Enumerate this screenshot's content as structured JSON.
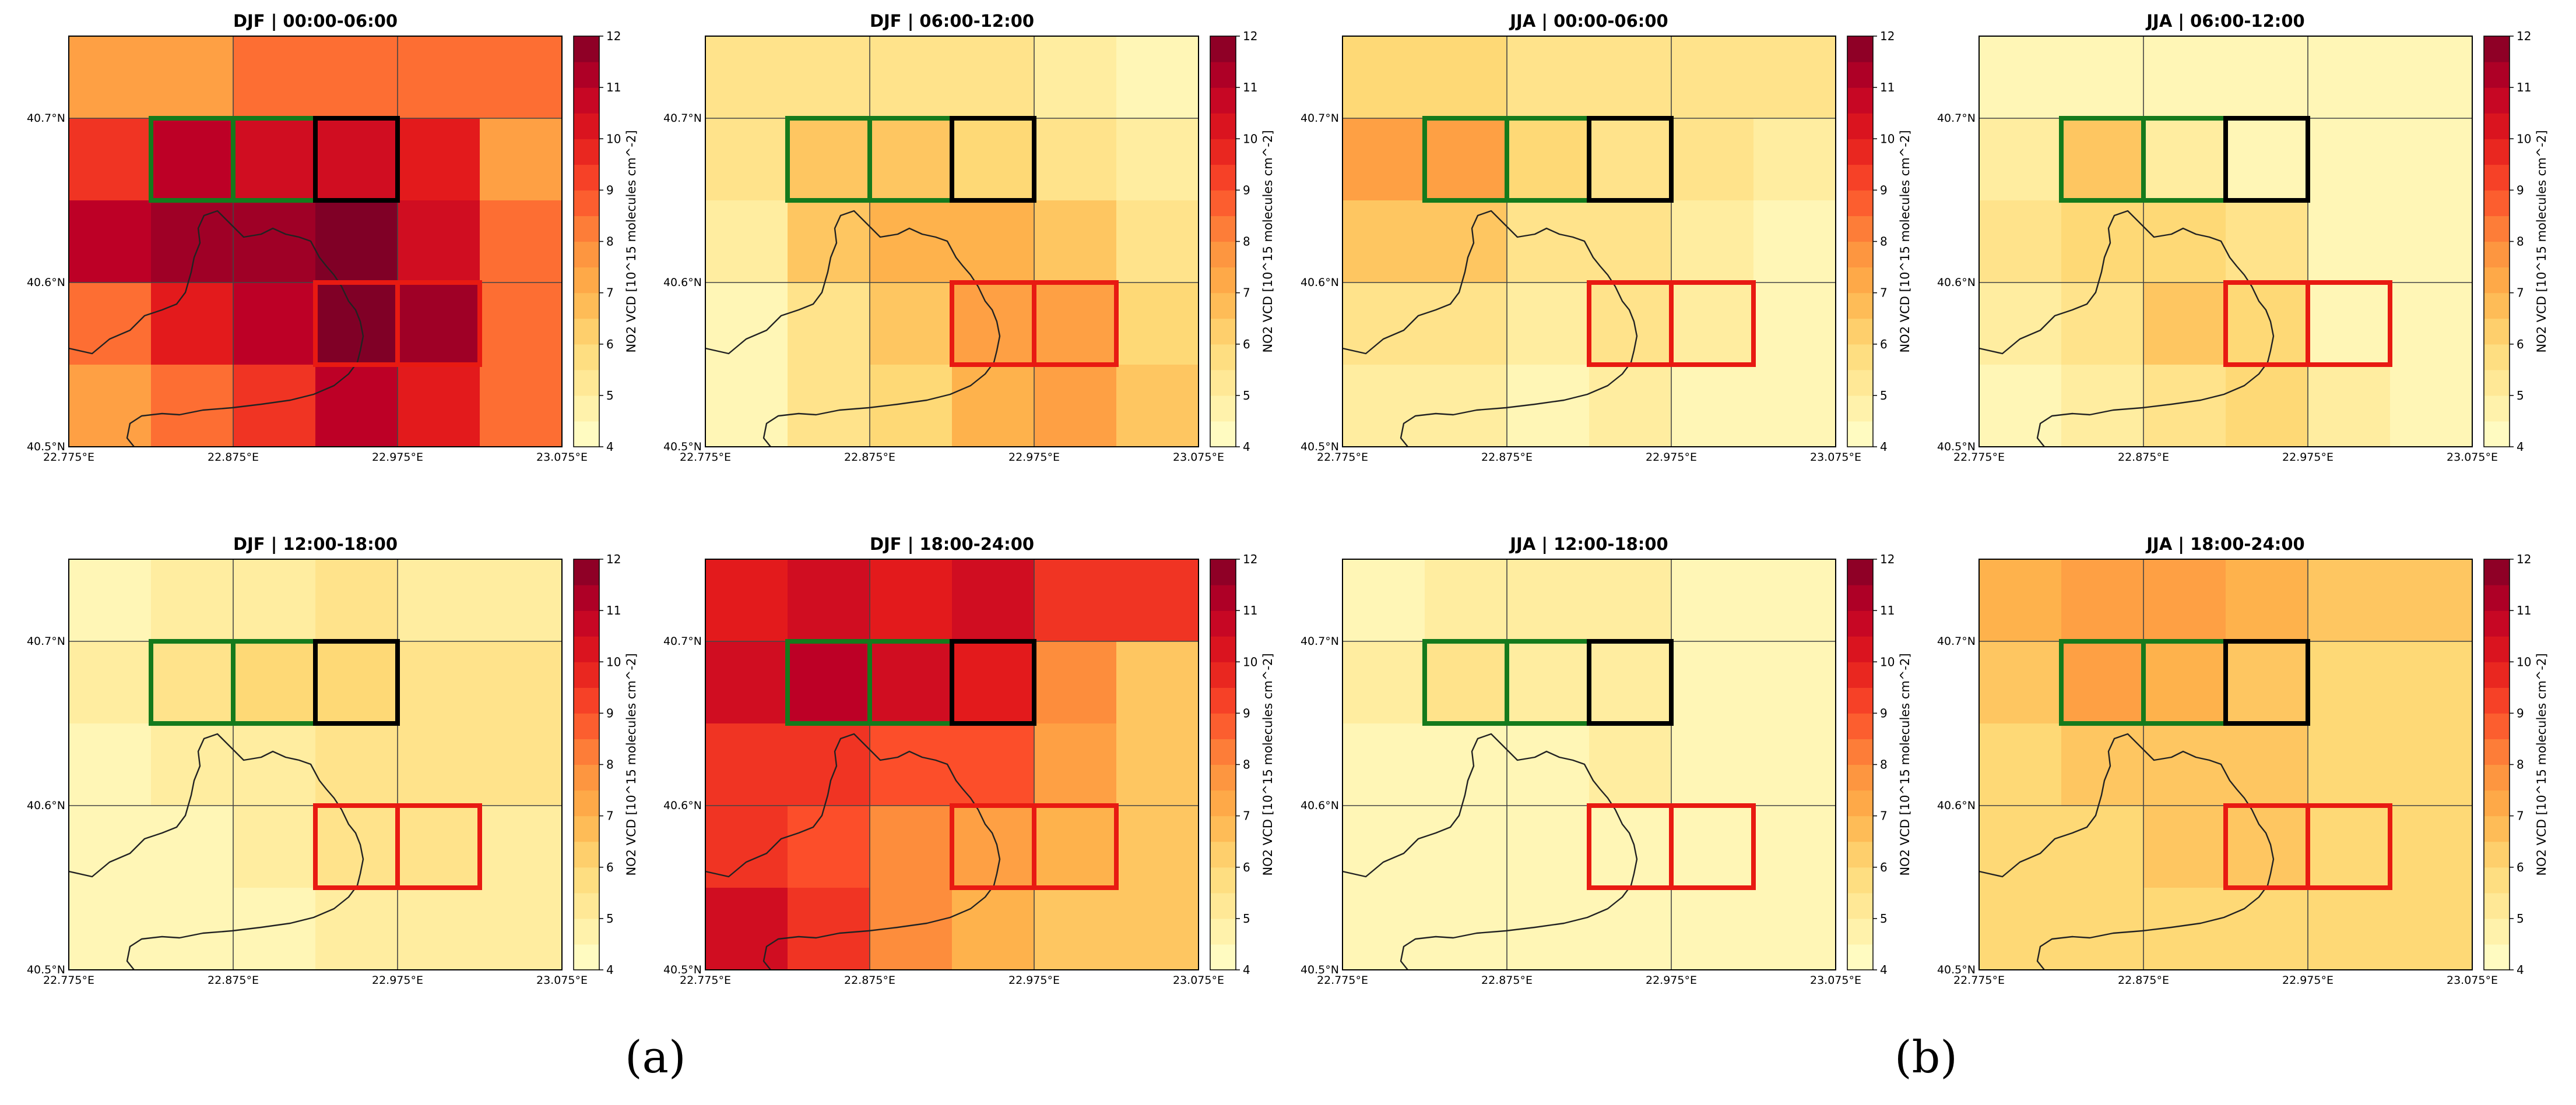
{
  "figure_labels": [
    "(a)",
    "(b)"
  ],
  "chart_data": [
    {
      "type": "heatmap",
      "title": "DJF | 00:00-06:00",
      "xticks": [
        "22.775°E",
        "22.875°E",
        "22.975°E",
        "23.075°E"
      ],
      "yticks": [
        "40.5°N",
        "40.6°N",
        "40.7°N"
      ],
      "xlim": [
        22.775,
        23.075
      ],
      "ylim": [
        40.5,
        40.75
      ],
      "colorbar": {
        "label": "NO2 VCD [10^15 molecules cm^-2]",
        "min": 4,
        "max": 12,
        "ticks": [
          4,
          5,
          6,
          7,
          8,
          9,
          10,
          11,
          12
        ]
      },
      "values": [
        [
          7.5,
          7.5,
          8.5,
          8.5,
          8.5,
          8.5
        ],
        [
          9.5,
          11.0,
          10.5,
          10.5,
          10.0,
          7.5
        ],
        [
          11.0,
          11.5,
          11.5,
          12.0,
          10.5,
          8.5
        ],
        [
          8.5,
          10.0,
          11.0,
          12.0,
          11.5,
          8.5
        ],
        [
          7.5,
          8.5,
          9.5,
          11.0,
          10.0,
          8.5
        ]
      ],
      "overlays": [
        {
          "name": "green",
          "color": "#157a1c",
          "cells": [
            [
              1,
              1
            ],
            [
              2,
              1
            ]
          ]
        },
        {
          "name": "black",
          "color": "#000000",
          "cells": [
            [
              3,
              1
            ]
          ]
        },
        {
          "name": "red",
          "color": "#e81a12",
          "cells": [
            [
              3,
              3
            ],
            [
              4,
              3
            ]
          ]
        }
      ]
    },
    {
      "type": "heatmap",
      "title": "DJF | 06:00-12:00",
      "xticks": [
        "22.775°E",
        "22.875°E",
        "22.975°E",
        "23.075°E"
      ],
      "yticks": [
        "40.5°N",
        "40.6°N",
        "40.7°N"
      ],
      "xlim": [
        22.775,
        23.075
      ],
      "ylim": [
        40.5,
        40.75
      ],
      "colorbar": {
        "label": "NO2 VCD [10^15 molecules cm^-2]",
        "min": 4,
        "max": 12,
        "ticks": [
          4,
          5,
          6,
          7,
          8,
          9,
          10,
          11,
          12
        ]
      },
      "values": [
        [
          5.5,
          5.5,
          5.5,
          5.5,
          5.0,
          4.5
        ],
        [
          5.5,
          6.5,
          6.5,
          6.0,
          5.5,
          5.0
        ],
        [
          5.0,
          6.5,
          7.0,
          7.0,
          6.5,
          5.5
        ],
        [
          4.5,
          5.5,
          6.5,
          7.5,
          7.5,
          6.0
        ],
        [
          4.5,
          5.5,
          6.0,
          7.0,
          7.5,
          6.5
        ]
      ],
      "overlays": [
        {
          "name": "green",
          "color": "#157a1c",
          "cells": [
            [
              1,
              1
            ],
            [
              2,
              1
            ]
          ]
        },
        {
          "name": "black",
          "color": "#000000",
          "cells": [
            [
              3,
              1
            ]
          ]
        },
        {
          "name": "red",
          "color": "#e81a12",
          "cells": [
            [
              3,
              3
            ],
            [
              4,
              3
            ]
          ]
        }
      ]
    },
    {
      "type": "heatmap",
      "title": "JJA | 00:00-06:00",
      "xticks": [
        "22.775°E",
        "22.875°E",
        "22.975°E",
        "23.075°E"
      ],
      "yticks": [
        "40.5°N",
        "40.6°N",
        "40.7°N"
      ],
      "xlim": [
        22.775,
        23.075
      ],
      "ylim": [
        40.5,
        40.75
      ],
      "colorbar": {
        "label": "NO2 VCD [10^15 molecules cm^-2]",
        "min": 4,
        "max": 12,
        "ticks": [
          4,
          5,
          6,
          7,
          8,
          9,
          10,
          11,
          12
        ]
      },
      "values": [
        [
          6.0,
          6.0,
          5.5,
          5.5,
          5.5,
          5.5
        ],
        [
          7.5,
          7.5,
          6.0,
          5.5,
          5.5,
          5.0
        ],
        [
          6.5,
          6.5,
          5.5,
          5.5,
          5.0,
          4.5
        ],
        [
          5.5,
          5.5,
          5.0,
          5.5,
          5.0,
          4.5
        ],
        [
          5.0,
          5.0,
          4.5,
          5.0,
          4.5,
          4.5
        ]
      ],
      "overlays": [
        {
          "name": "green",
          "color": "#157a1c",
          "cells": [
            [
              1,
              1
            ],
            [
              2,
              1
            ]
          ]
        },
        {
          "name": "black",
          "color": "#000000",
          "cells": [
            [
              3,
              1
            ]
          ]
        },
        {
          "name": "red",
          "color": "#e81a12",
          "cells": [
            [
              3,
              3
            ],
            [
              4,
              3
            ]
          ]
        }
      ]
    },
    {
      "type": "heatmap",
      "title": "JJA | 06:00-12:00",
      "xticks": [
        "22.775°E",
        "22.875°E",
        "22.975°E",
        "23.075°E"
      ],
      "yticks": [
        "40.5°N",
        "40.6°N",
        "40.7°N"
      ],
      "xlim": [
        22.775,
        23.075
      ],
      "ylim": [
        40.5,
        40.75
      ],
      "colorbar": {
        "label": "NO2 VCD [10^15 molecules cm^-2]",
        "min": 4,
        "max": 12,
        "ticks": [
          4,
          5,
          6,
          7,
          8,
          9,
          10,
          11,
          12
        ]
      },
      "values": [
        [
          4.5,
          4.5,
          4.5,
          4.5,
          4.5,
          4.5
        ],
        [
          5.0,
          6.5,
          5.0,
          4.5,
          4.5,
          4.5
        ],
        [
          5.5,
          6.0,
          6.0,
          5.5,
          4.5,
          4.5
        ],
        [
          5.0,
          5.5,
          6.5,
          6.0,
          4.5,
          4.5
        ],
        [
          4.5,
          5.0,
          5.5,
          6.0,
          5.0,
          4.5
        ]
      ],
      "overlays": [
        {
          "name": "green",
          "color": "#157a1c",
          "cells": [
            [
              1,
              1
            ],
            [
              2,
              1
            ]
          ]
        },
        {
          "name": "black",
          "color": "#000000",
          "cells": [
            [
              3,
              1
            ]
          ]
        },
        {
          "name": "red",
          "color": "#e81a12",
          "cells": [
            [
              3,
              3
            ],
            [
              4,
              3
            ]
          ]
        }
      ]
    },
    {
      "type": "heatmap",
      "title": "DJF | 12:00-18:00",
      "xticks": [
        "22.775°E",
        "22.875°E",
        "22.975°E",
        "23.075°E"
      ],
      "yticks": [
        "40.5°N",
        "40.6°N",
        "40.7°N"
      ],
      "xlim": [
        22.775,
        23.075
      ],
      "ylim": [
        40.5,
        40.75
      ],
      "colorbar": {
        "label": "NO2 VCD [10^15 molecules cm^-2]",
        "min": 4,
        "max": 12,
        "ticks": [
          4,
          5,
          6,
          7,
          8,
          9,
          10,
          11,
          12
        ]
      },
      "values": [
        [
          4.5,
          5.0,
          5.0,
          5.5,
          5.0,
          5.0
        ],
        [
          5.0,
          5.5,
          6.0,
          6.0,
          5.5,
          5.5
        ],
        [
          4.5,
          5.0,
          5.0,
          5.5,
          5.5,
          5.5
        ],
        [
          4.5,
          4.5,
          5.0,
          5.5,
          5.5,
          5.0
        ],
        [
          4.5,
          4.5,
          4.5,
          5.0,
          5.0,
          5.0
        ]
      ],
      "overlays": [
        {
          "name": "green",
          "color": "#157a1c",
          "cells": [
            [
              1,
              1
            ],
            [
              2,
              1
            ]
          ]
        },
        {
          "name": "black",
          "color": "#000000",
          "cells": [
            [
              3,
              1
            ]
          ]
        },
        {
          "name": "red",
          "color": "#e81a12",
          "cells": [
            [
              3,
              3
            ],
            [
              4,
              3
            ]
          ]
        }
      ]
    },
    {
      "type": "heatmap",
      "title": "DJF | 18:00-24:00",
      "xticks": [
        "22.775°E",
        "22.875°E",
        "22.975°E",
        "23.075°E"
      ],
      "yticks": [
        "40.5°N",
        "40.6°N",
        "40.7°N"
      ],
      "xlim": [
        22.775,
        23.075
      ],
      "ylim": [
        40.5,
        40.75
      ],
      "colorbar": {
        "label": "NO2 VCD [10^15 molecules cm^-2]",
        "min": 4,
        "max": 12,
        "ticks": [
          4,
          5,
          6,
          7,
          8,
          9,
          10,
          11,
          12
        ]
      },
      "values": [
        [
          10.0,
          10.5,
          10.0,
          10.5,
          9.5,
          9.5
        ],
        [
          10.5,
          11.0,
          10.5,
          10.0,
          8.0,
          6.5
        ],
        [
          9.5,
          9.5,
          9.0,
          9.0,
          7.5,
          6.5
        ],
        [
          9.5,
          9.0,
          8.0,
          7.5,
          7.0,
          6.5
        ],
        [
          10.5,
          9.5,
          8.0,
          7.0,
          6.5,
          6.5
        ]
      ],
      "overlays": [
        {
          "name": "green",
          "color": "#157a1c",
          "cells": [
            [
              1,
              1
            ],
            [
              2,
              1
            ]
          ]
        },
        {
          "name": "black",
          "color": "#000000",
          "cells": [
            [
              3,
              1
            ]
          ]
        },
        {
          "name": "red",
          "color": "#e81a12",
          "cells": [
            [
              3,
              3
            ],
            [
              4,
              3
            ]
          ]
        }
      ]
    },
    {
      "type": "heatmap",
      "title": "JJA | 12:00-18:00",
      "xticks": [
        "22.775°E",
        "22.875°E",
        "22.975°E",
        "23.075°E"
      ],
      "yticks": [
        "40.5°N",
        "40.6°N",
        "40.7°N"
      ],
      "xlim": [
        22.775,
        23.075
      ],
      "ylim": [
        40.5,
        40.75
      ],
      "colorbar": {
        "label": "NO2 VCD [10^15 molecules cm^-2]",
        "min": 4,
        "max": 12,
        "ticks": [
          4,
          5,
          6,
          7,
          8,
          9,
          10,
          11,
          12
        ]
      },
      "values": [
        [
          4.5,
          5.0,
          5.0,
          5.0,
          4.5,
          4.5
        ],
        [
          5.0,
          5.5,
          5.0,
          5.0,
          4.5,
          4.5
        ],
        [
          4.5,
          4.5,
          4.5,
          5.0,
          4.5,
          4.5
        ],
        [
          4.5,
          4.5,
          4.5,
          4.5,
          4.5,
          4.5
        ],
        [
          4.5,
          4.5,
          4.5,
          4.5,
          4.5,
          4.5
        ]
      ],
      "overlays": [
        {
          "name": "green",
          "color": "#157a1c",
          "cells": [
            [
              1,
              1
            ],
            [
              2,
              1
            ]
          ]
        },
        {
          "name": "black",
          "color": "#000000",
          "cells": [
            [
              3,
              1
            ]
          ]
        },
        {
          "name": "red",
          "color": "#e81a12",
          "cells": [
            [
              3,
              3
            ],
            [
              4,
              3
            ]
          ]
        }
      ]
    },
    {
      "type": "heatmap",
      "title": "JJA | 18:00-24:00",
      "xticks": [
        "22.775°E",
        "22.875°E",
        "22.975°E",
        "23.075°E"
      ],
      "yticks": [
        "40.5°N",
        "40.6°N",
        "40.7°N"
      ],
      "xlim": [
        22.775,
        23.075
      ],
      "ylim": [
        40.5,
        40.75
      ],
      "colorbar": {
        "label": "NO2 VCD [10^15 molecules cm^-2]",
        "min": 4,
        "max": 12,
        "ticks": [
          4,
          5,
          6,
          7,
          8,
          9,
          10,
          11,
          12
        ]
      },
      "values": [
        [
          7.0,
          7.5,
          7.5,
          7.0,
          6.5,
          6.5
        ],
        [
          6.5,
          7.5,
          7.0,
          6.5,
          6.0,
          6.0
        ],
        [
          6.0,
          6.5,
          6.5,
          6.5,
          6.0,
          6.0
        ],
        [
          6.0,
          6.0,
          6.5,
          6.5,
          6.0,
          6.0
        ],
        [
          6.0,
          6.0,
          6.0,
          6.0,
          6.0,
          6.0
        ]
      ],
      "overlays": [
        {
          "name": "green",
          "color": "#157a1c",
          "cells": [
            [
              1,
              1
            ],
            [
              2,
              1
            ]
          ]
        },
        {
          "name": "black",
          "color": "#000000",
          "cells": [
            [
              3,
              1
            ]
          ]
        },
        {
          "name": "red",
          "color": "#e81a12",
          "cells": [
            [
              3,
              3
            ],
            [
              4,
              3
            ]
          ]
        }
      ]
    }
  ]
}
